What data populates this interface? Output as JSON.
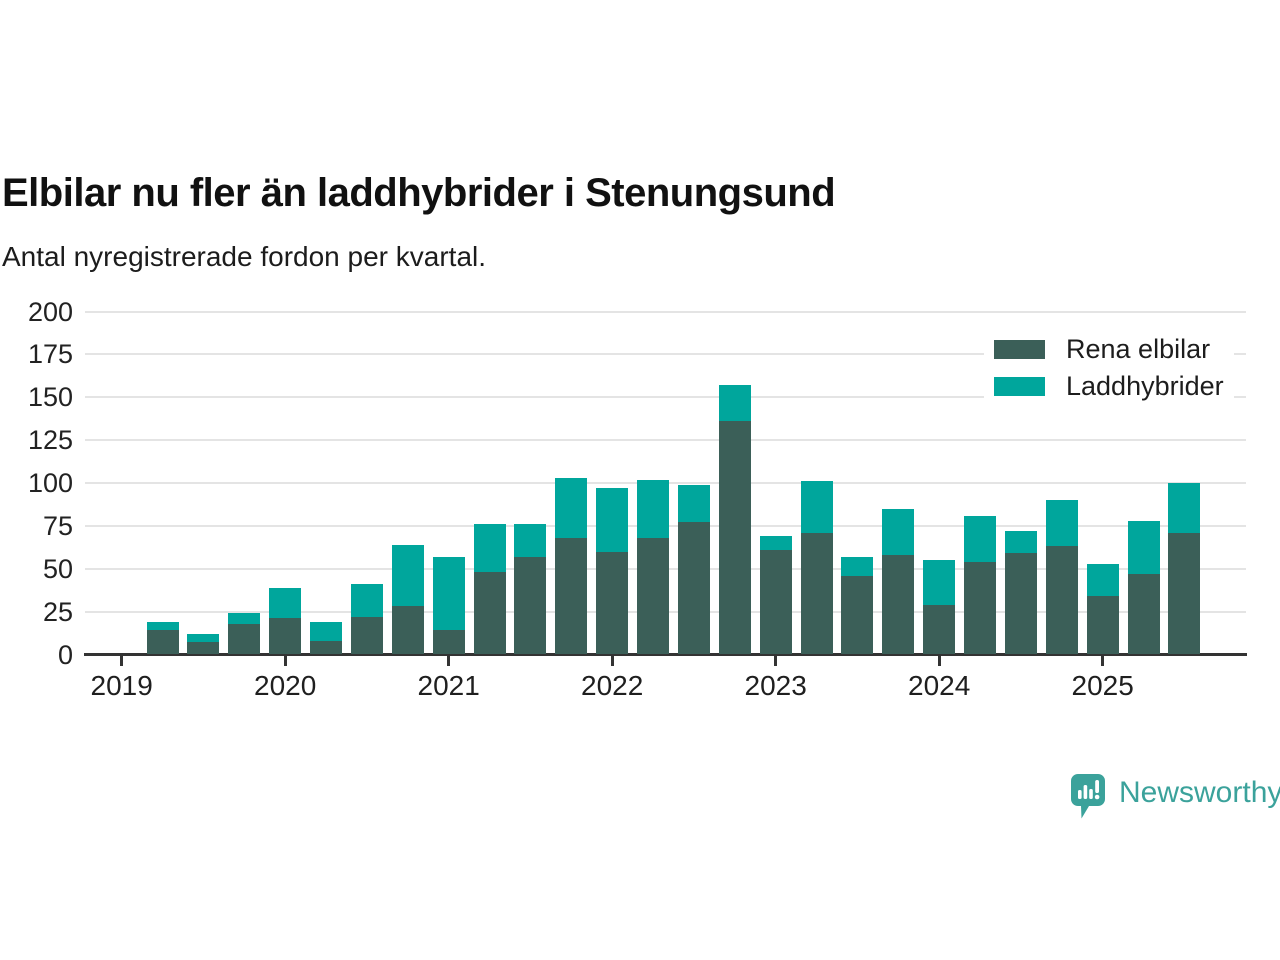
{
  "header": {
    "title": "Elbilar nu fler än laddhybrider i Stenungsund",
    "subtitle": "Antal nyregistrerade fordon per kvartal."
  },
  "legend": [
    {
      "label": "Rena elbilar",
      "color": "#3b5f58"
    },
    {
      "label": "Laddhybrider",
      "color": "#00a69c"
    }
  ],
  "footer": {
    "brand": "Newsworthy",
    "brand_color": "#3ba29b"
  },
  "colors": {
    "rena_elbilar": "#3b5f58",
    "laddhybrider": "#00a69c",
    "gridline": "#e4e4e4",
    "axis": "#333333",
    "text": "#222222"
  },
  "chart_data": {
    "type": "bar",
    "stacked": true,
    "title": "Elbilar nu fler än laddhybrider i Stenungsund",
    "subtitle": "Antal nyregistrerade fordon per kvartal.",
    "xlabel": "",
    "ylabel": "",
    "ylim": [
      0,
      200
    ],
    "yticks": [
      0,
      25,
      50,
      75,
      100,
      125,
      150,
      175,
      200
    ],
    "xticks": [
      "2019",
      "2020",
      "2021",
      "2022",
      "2023",
      "2024",
      "2025"
    ],
    "grid": "horizontal",
    "legend_position": "top-right",
    "x": [
      "2019 Q2",
      "2019 Q3",
      "2019 Q4",
      "2020 Q1",
      "2020 Q2",
      "2020 Q3",
      "2020 Q4",
      "2021 Q1",
      "2021 Q2",
      "2021 Q3",
      "2021 Q4",
      "2022 Q1",
      "2022 Q2",
      "2022 Q3",
      "2022 Q4",
      "2023 Q1",
      "2023 Q2",
      "2023 Q3",
      "2023 Q4",
      "2024 Q1",
      "2024 Q2",
      "2024 Q3",
      "2024 Q4",
      "2025 Q1",
      "2025 Q2",
      "2025 Q3"
    ],
    "series": [
      {
        "name": "Rena elbilar",
        "color": "#3b5f58",
        "values": [
          14,
          7,
          18,
          21,
          8,
          22,
          28,
          14,
          48,
          57,
          68,
          60,
          68,
          77,
          136,
          61,
          71,
          46,
          58,
          29,
          54,
          59,
          63,
          34,
          47,
          71
        ]
      },
      {
        "name": "Laddhybrider",
        "color": "#00a69c",
        "values": [
          5,
          5,
          6,
          18,
          11,
          19,
          36,
          43,
          28,
          19,
          35,
          37,
          34,
          22,
          21,
          8,
          30,
          11,
          27,
          26,
          27,
          13,
          27,
          19,
          31,
          29
        ]
      }
    ]
  }
}
